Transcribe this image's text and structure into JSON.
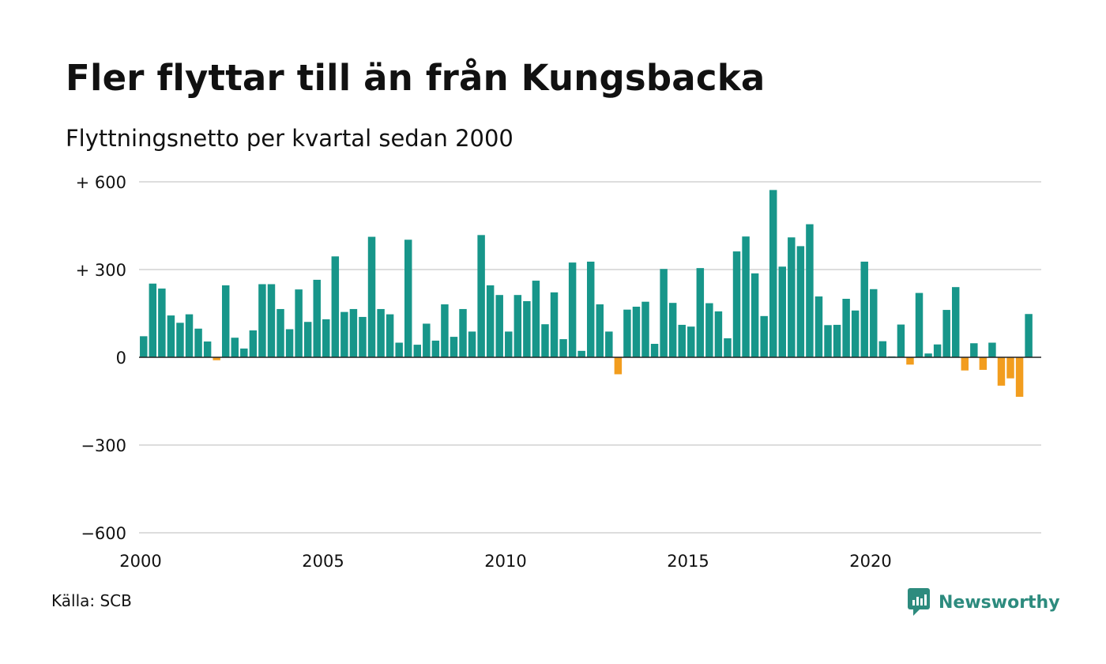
{
  "header": {
    "title": "Fler flyttar till än från Kungsbacka",
    "subtitle": "Flyttningsnetto per kvartal sedan 2000"
  },
  "footer": {
    "source": "Källa: SCB",
    "brand": "Newsworthy"
  },
  "colors": {
    "positive": "#17968a",
    "negative": "#f29d1e",
    "grid": "#dddddd",
    "baseline": "#222222",
    "text": "#111111",
    "brand": "#2d8b7e"
  },
  "chart_data": {
    "type": "bar",
    "title": "Fler flyttar till än från Kungsbacka",
    "subtitle": "Flyttningsnetto per kvartal sedan 2000",
    "xlabel": "",
    "ylabel": "",
    "ylim": [
      -600,
      600
    ],
    "grid": true,
    "yticks": [
      {
        "value": 600,
        "label": "+ 600"
      },
      {
        "value": 300,
        "label": "+ 300"
      },
      {
        "value": 0,
        "label": "0"
      },
      {
        "value": -300,
        "label": "−300"
      },
      {
        "value": -600,
        "label": "−600"
      }
    ],
    "xticks": [
      {
        "year": 2000,
        "label": "2000"
      },
      {
        "year": 2005,
        "label": "2005"
      },
      {
        "year": 2010,
        "label": "2010"
      },
      {
        "year": 2015,
        "label": "2015"
      },
      {
        "year": 2020,
        "label": "2020"
      }
    ],
    "start": {
      "year": 2000,
      "quarter": 1
    },
    "values": [
      72,
      252,
      235,
      143,
      118,
      147,
      98,
      54,
      -10,
      246,
      67,
      30,
      92,
      250,
      250,
      165,
      96,
      232,
      121,
      265,
      130,
      345,
      155,
      165,
      138,
      412,
      165,
      147,
      50,
      402,
      43,
      115,
      57,
      181,
      70,
      165,
      88,
      418,
      246,
      213,
      88,
      213,
      192,
      262,
      113,
      222,
      62,
      324,
      22,
      327,
      181,
      88,
      -58,
      163,
      173,
      190,
      46,
      302,
      186,
      111,
      105,
      305,
      185,
      157,
      65,
      362,
      413,
      287,
      141,
      572,
      310,
      410,
      380,
      455,
      208,
      110,
      111,
      200,
      160,
      327,
      233,
      55,
      3,
      112,
      -25,
      220,
      13,
      44,
      162,
      240,
      -45,
      48,
      -43,
      50,
      -97,
      -72,
      -135,
      148
    ]
  }
}
